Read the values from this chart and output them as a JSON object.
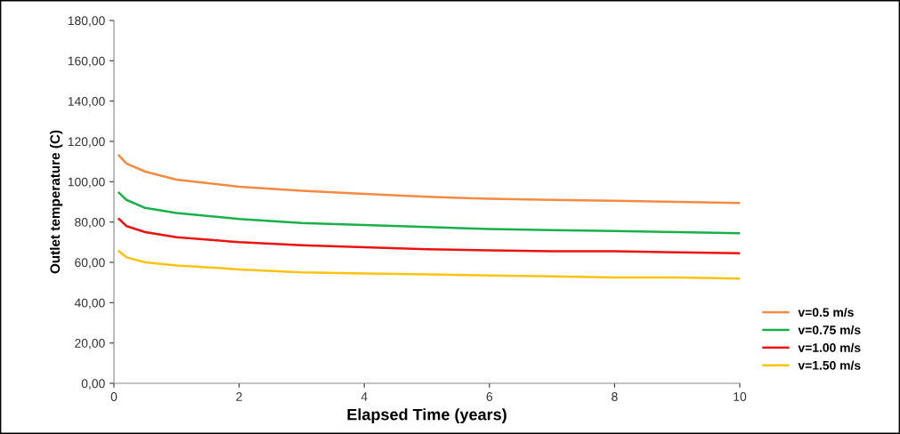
{
  "chart_data": {
    "type": "line",
    "xlabel": "Elapsed Time (years)",
    "ylabel": "Outlet temperature (C)",
    "x": [
      0.08,
      0.2,
      0.5,
      1,
      2,
      3,
      4,
      5,
      6,
      7,
      8,
      9,
      10
    ],
    "series": [
      {
        "name": "v=0.5 m/s",
        "color": "#f58a42",
        "values": [
          113,
          109,
          105,
          101,
          97.5,
          95.5,
          94,
          92.5,
          91.5,
          91,
          90.5,
          90,
          89.5
        ]
      },
      {
        "name": "v=0.75 m/s",
        "color": "#19b04b",
        "values": [
          94.5,
          91,
          87,
          84.5,
          81.5,
          79.5,
          78.5,
          77.5,
          76.5,
          76,
          75.5,
          75,
          74.5
        ]
      },
      {
        "name": "v=1.00 m/s",
        "color": "#ee1111",
        "values": [
          81.5,
          78,
          75,
          72.5,
          70,
          68.5,
          67.5,
          66.5,
          66,
          65.5,
          65.5,
          65,
          64.5
        ]
      },
      {
        "name": "v=1.50 m/s",
        "color": "#fcc310",
        "values": [
          65.5,
          62.5,
          60,
          58.5,
          56.5,
          55,
          54.5,
          54,
          53.5,
          53,
          52.5,
          52.5,
          52
        ]
      }
    ],
    "xlim": [
      0,
      10
    ],
    "xticks": [
      0,
      2,
      4,
      6,
      8,
      10
    ],
    "ylim": [
      0,
      180
    ],
    "yticks": [
      {
        "value": 0,
        "label": "0,00"
      },
      {
        "value": 20,
        "label": "20,00"
      },
      {
        "value": 40,
        "label": "40,00"
      },
      {
        "value": 60,
        "label": "60,00"
      },
      {
        "value": 80,
        "label": "80,00"
      },
      {
        "value": 100,
        "label": "100,00"
      },
      {
        "value": 120,
        "label": "120,00"
      },
      {
        "value": 140,
        "label": "140,00"
      },
      {
        "value": 160,
        "label": "160,00"
      },
      {
        "value": 180,
        "label": "180,00"
      }
    ],
    "grid": false,
    "legend": "bottom right",
    "marker": "none",
    "line_style": "solid"
  }
}
